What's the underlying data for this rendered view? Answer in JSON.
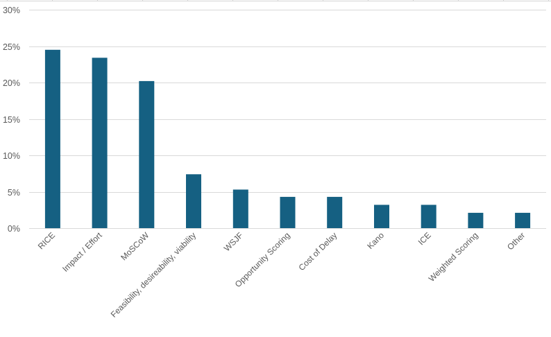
{
  "chart_data": {
    "type": "bar",
    "title": "",
    "xlabel": "",
    "ylabel": "",
    "categories": [
      "RICE",
      "Impact / Effort",
      "MoSCoW",
      "Feasibility, desireability, viability",
      "WSJF",
      "Opportunity Scoring",
      "Cost of Delay",
      "Kano",
      "ICE",
      "Weighted Scoring",
      "Other"
    ],
    "values": [
      24.5,
      23.4,
      20.2,
      7.4,
      5.3,
      4.3,
      4.3,
      3.2,
      3.2,
      2.1,
      2.1
    ],
    "value_format": "percent",
    "ylim": [
      0,
      30
    ],
    "yticks": [
      0,
      5,
      10,
      15,
      20,
      25,
      30
    ],
    "ytick_labels": [
      "0%",
      "5%",
      "10%",
      "15%",
      "20%",
      "25%",
      "30%"
    ],
    "grid": true,
    "legend": "none",
    "bar_color": "#156082",
    "xtick_rotation": -45
  },
  "colors": {
    "bar": "#156082",
    "gridline": "#d9d9d9",
    "tick_text": "#595959",
    "background": "#ffffff"
  }
}
